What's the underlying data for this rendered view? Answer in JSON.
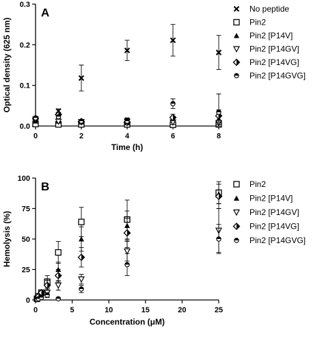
{
  "chart_data": [
    {
      "panel": "A",
      "type": "scatter",
      "xlabel": "Time (h)",
      "ylabel": "Optical density (625 nm)",
      "xlim": [
        0,
        8
      ],
      "ylim": [
        0,
        0.3
      ],
      "xticks": [
        0,
        2,
        4,
        6,
        8
      ],
      "yticks": [
        0.0,
        0.1,
        0.2,
        0.3
      ],
      "ytick_labels": [
        "0.0",
        "0.1",
        "0.2",
        "0.3"
      ],
      "grid": false,
      "legend_position": "right",
      "series": [
        {
          "name": "No peptide",
          "marker": "x",
          "x": [
            0,
            1,
            2,
            4,
            6,
            8
          ],
          "y": [
            0.01,
            0.037,
            0.118,
            0.186,
            0.211,
            0.181
          ],
          "err": [
            0.003,
            0.005,
            0.032,
            0.025,
            0.039,
            0.042
          ]
        },
        {
          "name": "Pin2",
          "marker": "square",
          "x": [
            0,
            1,
            2,
            4,
            6,
            8
          ],
          "y": [
            0.005,
            0.004,
            0.004,
            0.004,
            0.003,
            0.004
          ],
          "err": [
            0.002,
            0.002,
            0.002,
            0.002,
            0.002,
            0.002
          ]
        },
        {
          "name": "Pin2 [P14V]",
          "marker": "triangle-up",
          "x": [
            0,
            1,
            2,
            4,
            6,
            8
          ],
          "y": [
            0.012,
            0.012,
            0.01,
            0.012,
            0.018,
            0.018
          ],
          "err": [
            0.004,
            0.004,
            0.004,
            0.008,
            0.006,
            0.01
          ]
        },
        {
          "name": "Pin2 [P14GV]",
          "marker": "triangle-down",
          "x": [
            0,
            1,
            2,
            4,
            6,
            8
          ],
          "y": [
            0.016,
            0.011,
            0.01,
            0.011,
            0.009,
            0.008
          ],
          "err": [
            0.004,
            0.004,
            0.003,
            0.008,
            0.005,
            0.004
          ]
        },
        {
          "name": "Pin2 [P14VG]",
          "marker": "diamond",
          "x": [
            0,
            1,
            2,
            4,
            6,
            8
          ],
          "y": [
            0.018,
            0.028,
            0.011,
            0.009,
            0.021,
            0.025
          ],
          "err": [
            0.004,
            0.005,
            0.003,
            0.006,
            0.008,
            0.015
          ]
        },
        {
          "name": "Pin2 [P14GVG]",
          "marker": "half-circle",
          "x": [
            0,
            1,
            2,
            4,
            6,
            8
          ],
          "y": [
            0.02,
            0.023,
            0.012,
            0.012,
            0.055,
            0.034
          ],
          "err": [
            0.004,
            0.004,
            0.003,
            0.006,
            0.012,
            0.045
          ]
        }
      ]
    },
    {
      "panel": "B",
      "type": "scatter",
      "xlabel": "Concentration (μM)",
      "ylabel": "Hemolysis (%)",
      "xlim": [
        0,
        25
      ],
      "ylim": [
        0,
        100
      ],
      "xticks": [
        0,
        5,
        10,
        15,
        20,
        25
      ],
      "yticks": [
        0,
        25,
        50,
        75,
        100
      ],
      "ytick_labels": [
        "0",
        "25",
        "50",
        "75",
        "100"
      ],
      "grid": false,
      "legend_position": "right",
      "series": [
        {
          "name": "Pin2",
          "marker": "square",
          "x": [
            0.2,
            0.4,
            0.8,
            1.6,
            3.1,
            6.25,
            12.5,
            25
          ],
          "y": [
            1,
            3,
            6,
            15,
            39,
            64,
            66,
            88
          ],
          "err": [
            1,
            1,
            2,
            5,
            9,
            12,
            16,
            9
          ]
        },
        {
          "name": "Pin2 [P14V]",
          "marker": "triangle-up",
          "x": [
            0.2,
            0.4,
            0.8,
            1.6,
            3.1,
            6.25,
            12.5,
            25
          ],
          "y": [
            1,
            2,
            5,
            13,
            25,
            50,
            61,
            87
          ],
          "err": [
            1,
            1,
            2,
            4,
            6,
            10,
            12,
            8
          ]
        },
        {
          "name": "Pin2 [P14GV]",
          "marker": "triangle-down",
          "x": [
            0.2,
            0.4,
            0.8,
            1.6,
            3.1,
            6.25,
            12.5,
            25
          ],
          "y": [
            1,
            1,
            3,
            6,
            12,
            17,
            40,
            57
          ],
          "err": [
            1,
            1,
            1,
            3,
            4,
            4,
            8,
            18
          ]
        },
        {
          "name": "Pin2 [P14VG]",
          "marker": "diamond",
          "x": [
            0.2,
            0.4,
            0.8,
            1.6,
            3.1,
            6.25,
            12.5,
            25
          ],
          "y": [
            1,
            3,
            6,
            12,
            20,
            35,
            55,
            85
          ],
          "err": [
            1,
            1,
            2,
            4,
            5,
            8,
            12,
            10
          ]
        },
        {
          "name": "Pin2 [P14GVG]",
          "marker": "half-circle",
          "x": [
            0.2,
            0.4,
            0.8,
            1.6,
            3.1,
            6.25,
            12.5,
            25
          ],
          "y": [
            0.5,
            1,
            2,
            4,
            1,
            9,
            29,
            50
          ],
          "err": [
            1,
            1,
            1,
            2,
            1,
            3,
            9,
            12
          ]
        }
      ]
    }
  ]
}
